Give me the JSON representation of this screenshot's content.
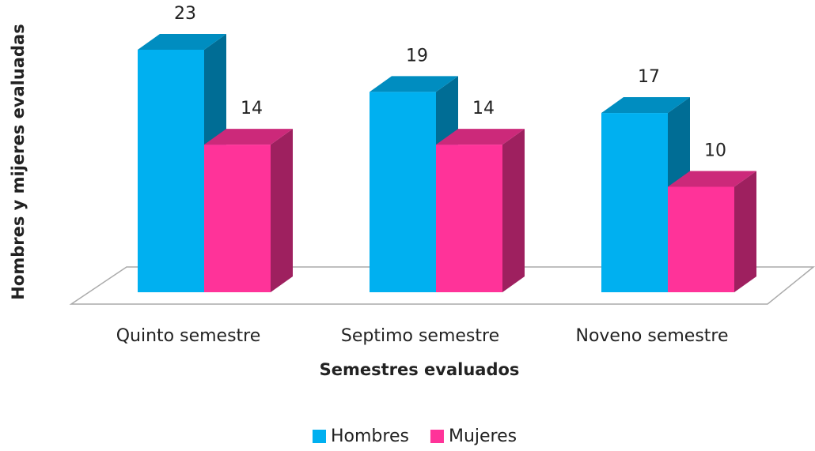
{
  "chart_data": {
    "type": "bar3d",
    "x_label": "Semestres evaluados",
    "y_label": "Hombres y mijeres evaluadas",
    "categories": [
      "Quinto semestre",
      "Septimo semestre",
      "Noveno semestre"
    ],
    "series": [
      {
        "name": "Hombres",
        "color": "#00b0f0",
        "values": [
          23,
          19,
          17
        ]
      },
      {
        "name": "Mujeres",
        "color": "#ff3399",
        "values": [
          14,
          14,
          10
        ]
      }
    ],
    "legend": "bottom"
  }
}
